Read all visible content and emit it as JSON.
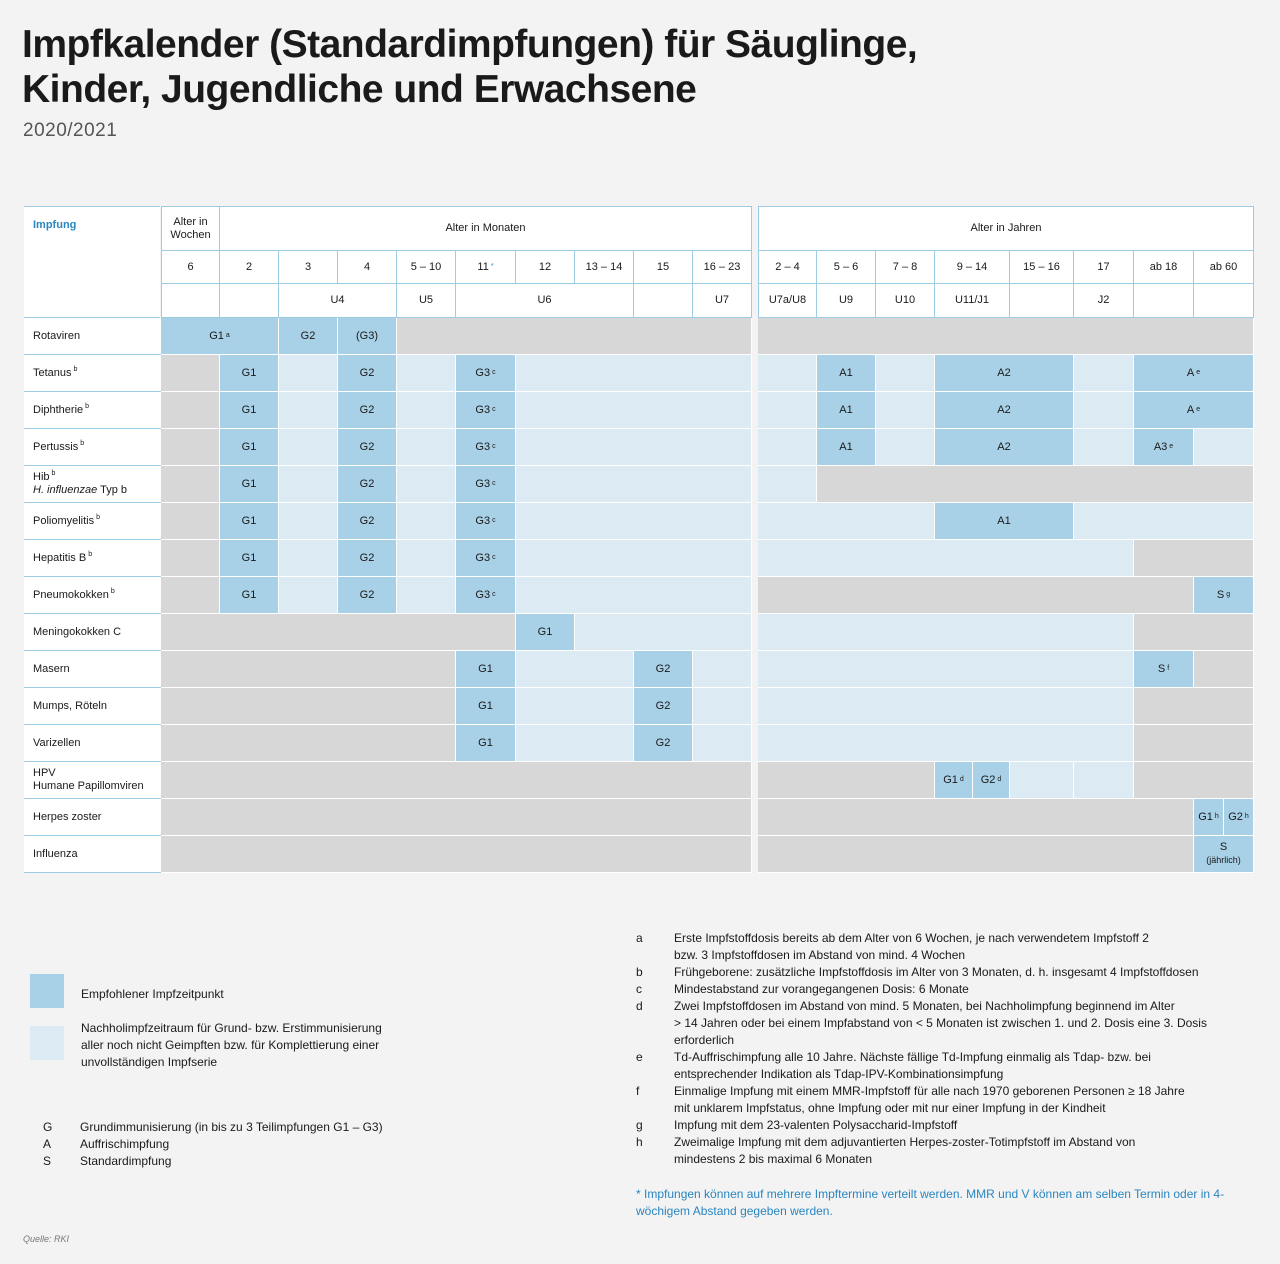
{
  "title_line1": "Impfkalender (Standardimpfungen) für Säuglinge,",
  "title_line2": "Kinder, Jugendliche und Erwachsene",
  "subtitle": "2020/2021",
  "table": {
    "impfung_label": "Impfung",
    "alter_wochen": "Alter in Wochen",
    "alter_monaten": "Alter in Monaten",
    "alter_jahren": "Alter in Jahren",
    "ages": [
      "6",
      "2",
      "3",
      "4",
      "5 – 10",
      "11",
      "12",
      "13 – 14",
      "15",
      "16 – 23",
      "2 – 4",
      "5 – 6",
      "7 – 8",
      "9 – 14",
      "15 – 16",
      "17",
      "ab 18",
      "ab 60"
    ],
    "age_11_mark": "*",
    "u": {
      "u4": "U4",
      "u5": "U5",
      "u6": "U6",
      "u7": "U7",
      "u7a": "U7a/U8",
      "u9": "U9",
      "u10": "U10",
      "u11": "U11/J1",
      "j2": "J2"
    },
    "rows": [
      {
        "name": "Rotaviren"
      },
      {
        "name": "Tetanus",
        "sup": "b"
      },
      {
        "name": "Diphtherie",
        "sup": "b"
      },
      {
        "name": "Pertussis",
        "sup": "b"
      },
      {
        "name": "Hib",
        "sup": "b",
        "name2": "H. influenzae",
        "name3": "Typ b"
      },
      {
        "name": "Poliomyelitis",
        "sup": "b"
      },
      {
        "name": "Hepatitis B",
        "sup": "b"
      },
      {
        "name": "Pneumokokken",
        "sup": "b"
      },
      {
        "name": "Meningokokken C"
      },
      {
        "name": "Masern"
      },
      {
        "name": "Mumps, Röteln"
      },
      {
        "name": "Varizellen"
      },
      {
        "name": "HPV",
        "name2": "Humane Papillomviren"
      },
      {
        "name": "Herpes zoster"
      },
      {
        "name": "Influenza"
      }
    ],
    "labels": {
      "G1": "G1",
      "G2": "G2",
      "G3": "G3",
      "G3p": "(G3)",
      "A1": "A1",
      "A2": "A2",
      "A": "A",
      "A3": "A3",
      "S": "S",
      "jaehrlich": "(jährlich)"
    },
    "sups": {
      "a": "a",
      "b": "b",
      "c": "c",
      "d": "d",
      "e": "e",
      "f": "f",
      "g": "g",
      "h": "h"
    }
  },
  "legend": {
    "colors": {
      "dark": "#a8d0e6",
      "light": "#dceaf4",
      "gray": "#d7d7d7"
    },
    "empfohlen": "Empfohlener Impfzeitpunkt",
    "nachhol": [
      "Nachholimpfzeitraum für Grund- bzw. Erstimmunisierung",
      "aller noch nicht Geimpften bzw. für Komplettierung einer",
      "unvollständigen Impfserie"
    ],
    "abbr": [
      {
        "k": "G",
        "v": "Grundimmunisierung (in bis zu 3 Teilimpfungen G1 – G3)"
      },
      {
        "k": "A",
        "v": "Auffrischimpfung"
      },
      {
        "k": "S",
        "v": "Standardimpfung"
      }
    ]
  },
  "footnotes": [
    {
      "k": "a",
      "lines": [
        "Erste Impfstoffdosis bereits ab dem Alter von 6 Wochen, je nach verwendetem Impfstoff 2",
        "bzw. 3  Impfstoffdosen im Abstand von mind. 4 Wochen"
      ]
    },
    {
      "k": "b",
      "lines": [
        "Frühgeborene: zusätzliche Impfstoffdosis im Alter von 3 Monaten, d. h. insgesamt 4 Impfstoffdosen"
      ]
    },
    {
      "k": "c",
      "lines": [
        "Mindestabstand zur vorangegangenen Dosis: 6 Monate"
      ]
    },
    {
      "k": "d",
      "lines": [
        "Zwei Impfstoffdosen im Abstand von mind. 5 Monaten, bei Nachholimpfung beginnend im Alter",
        "> 14 Jahren oder bei einem Impfabstand von < 5 Monaten ist zwischen 1. und 2. Dosis eine 3. Dosis",
        "erforderlich"
      ]
    },
    {
      "k": "e",
      "lines": [
        "Td-Auffrischimpfung alle 10 Jahre. Nächste fällige Td-Impfung einmalig als Tdap- bzw. bei",
        "entsprechender Indikation als Tdap-IPV-Kombinationsimpfung"
      ]
    },
    {
      "k": "f",
      "lines": [
        "Einmalige Impfung mit einem MMR-Impfstoff für alle nach 1970 geborenen Personen ≥ 18 Jahre",
        "mit unklarem Impfstatus, ohne Impfung oder mit nur einer Impfung in der Kindheit"
      ]
    },
    {
      "k": "g",
      "lines": [
        "Impfung mit dem 23-valenten Polysaccharid-Impfstoff"
      ]
    },
    {
      "k": "h",
      "lines": [
        "Zweimalige Impfung mit dem adjuvantierten Herpes-zoster-Totimpfstoff im Abstand von",
        "mindestens 2 bis maximal 6 Monaten"
      ]
    }
  ],
  "note": "* Impfungen können auf mehrere Impftermine verteilt werden. MMR und V können am selben Termin oder in 4-wöchigem Abstand gegeben werden.",
  "source": "Quelle: RKI"
}
